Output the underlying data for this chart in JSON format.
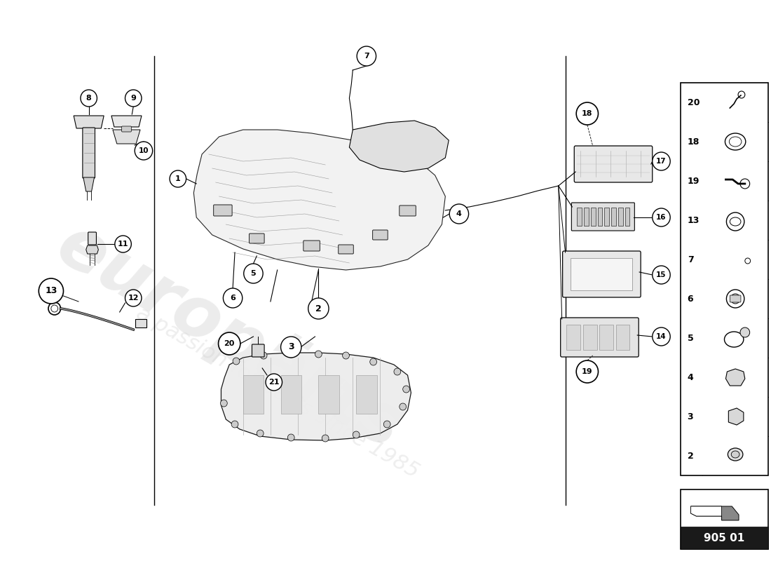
{
  "background_color": "#ffffff",
  "part_number": "905 01",
  "right_table_items": [
    {
      "num": "20"
    },
    {
      "num": "18"
    },
    {
      "num": "19"
    },
    {
      "num": "13"
    },
    {
      "num": "7"
    },
    {
      "num": "6"
    },
    {
      "num": "5"
    },
    {
      "num": "4"
    },
    {
      "num": "3"
    },
    {
      "num": "2"
    }
  ]
}
